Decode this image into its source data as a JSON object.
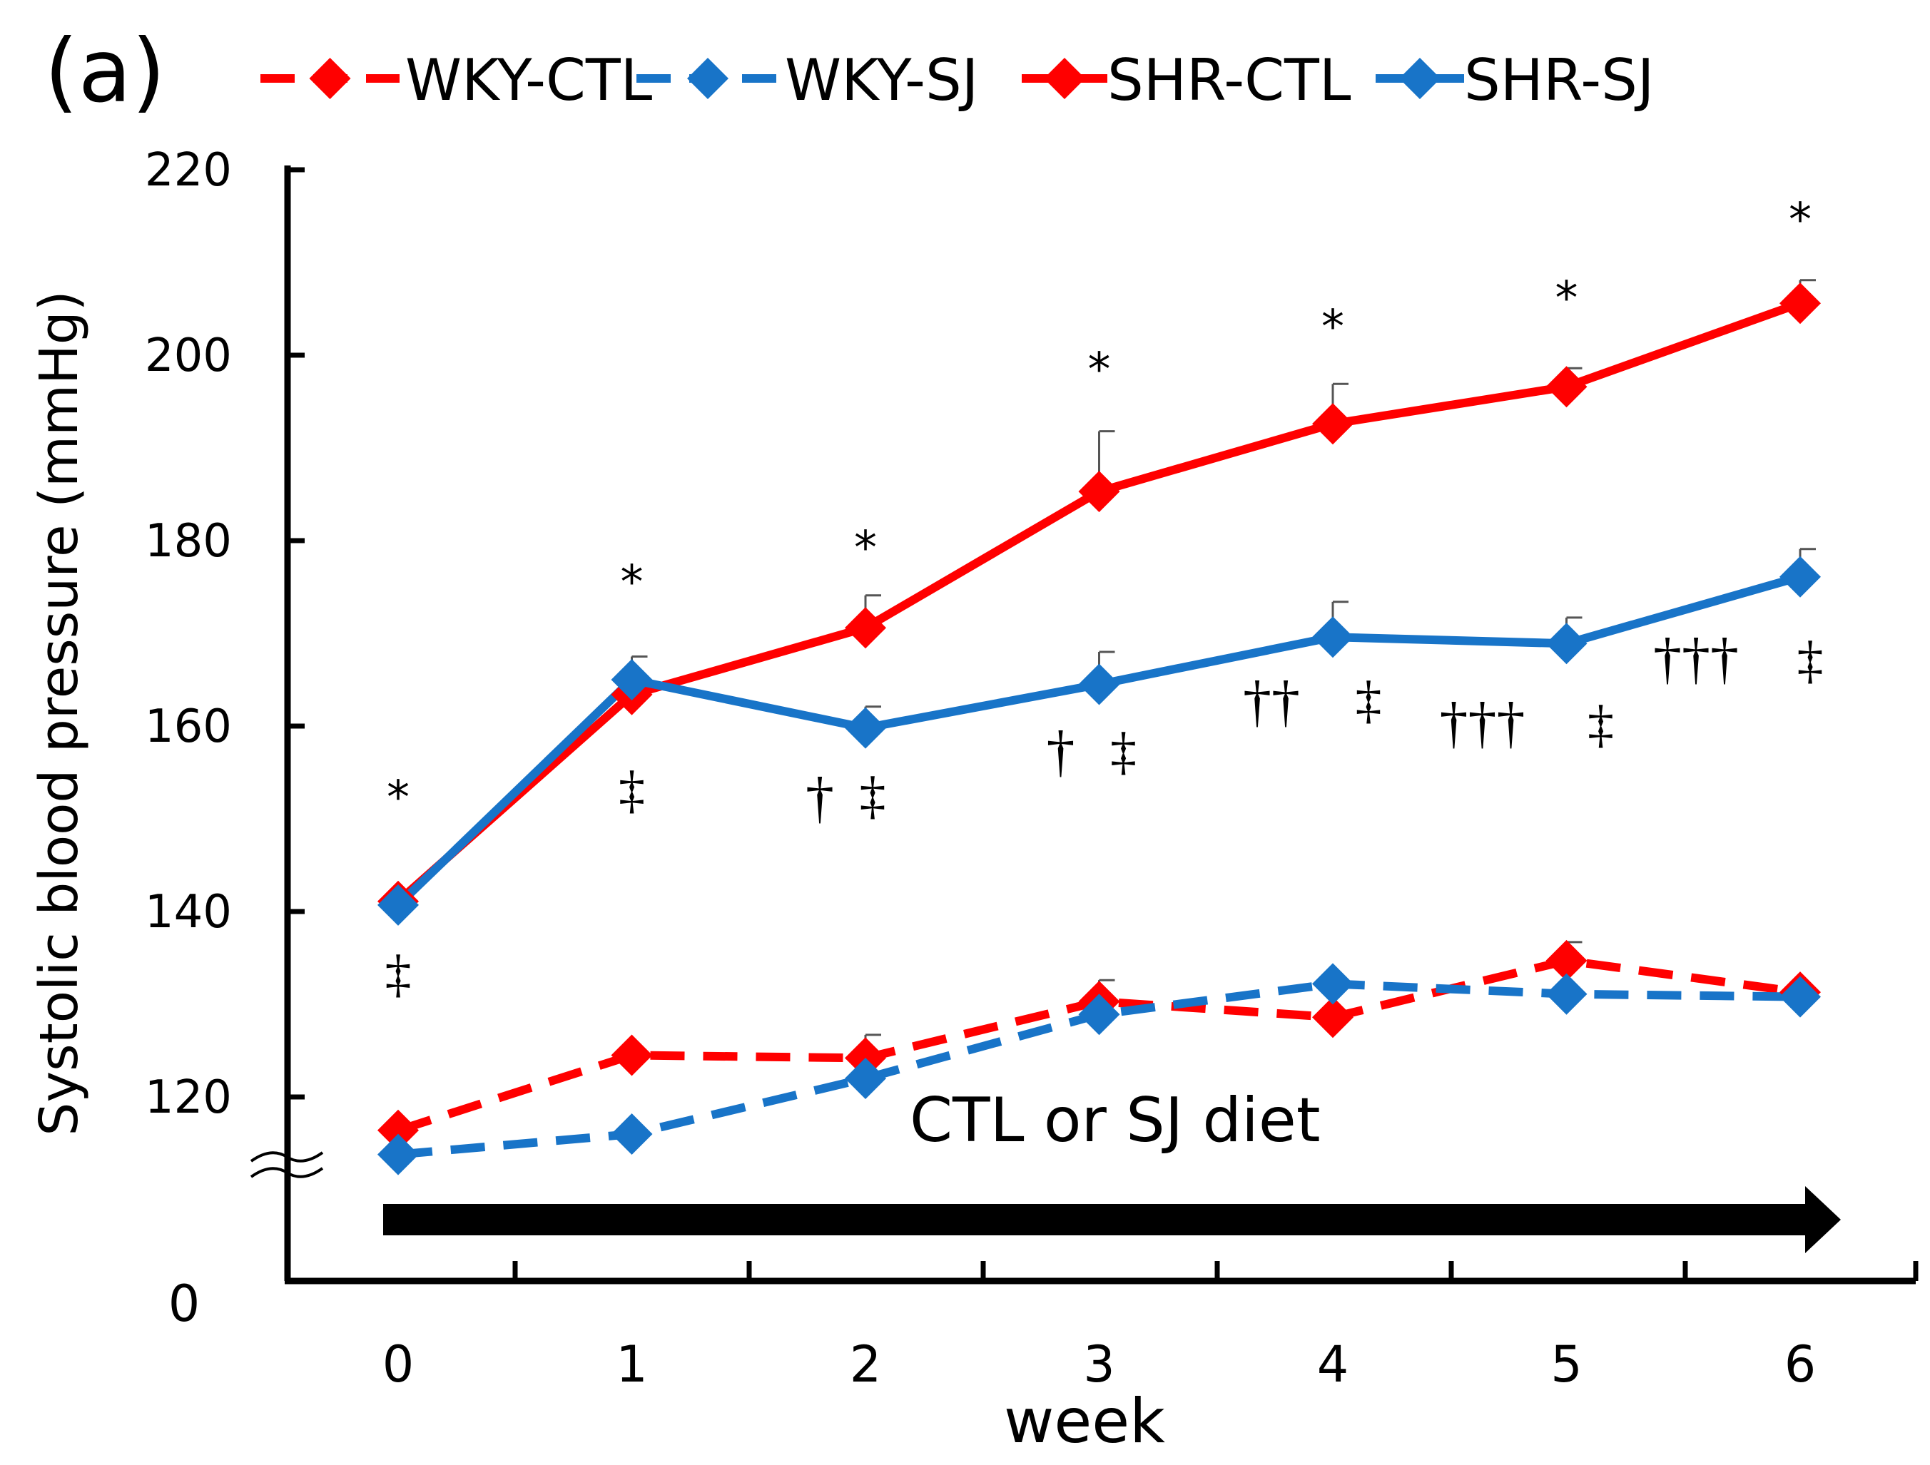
{
  "chart_data": {
    "type": "line",
    "panel_label": "(a)",
    "ylabel": "Systolic blood pressure (mmHg)",
    "xlabel": "week",
    "x": [
      0,
      1,
      2,
      3,
      4,
      5,
      6
    ],
    "yticks": [
      120,
      140,
      160,
      180,
      200,
      220
    ],
    "ylim": [
      110,
      220
    ],
    "y_zero_label": "0",
    "axis_break": true,
    "grid": false,
    "legend_position": "top",
    "annotation": "CTL or SJ diet",
    "series": [
      {
        "name": "WKY-CTL",
        "color": "#ff0000",
        "dash": true,
        "values": [
          116.4,
          124.5,
          124.2,
          130.3,
          128.6,
          134.7,
          131.3
        ],
        "errors": [
          0,
          0,
          2.5,
          2.3,
          0,
          2.0,
          0
        ]
      },
      {
        "name": "WKY-SJ",
        "color": "#1874c8",
        "dash": true,
        "values": [
          113.8,
          116.0,
          122.0,
          128.9,
          132.2,
          131.1,
          130.8
        ],
        "errors": [
          0,
          0,
          0,
          0,
          0,
          0,
          0
        ]
      },
      {
        "name": "SHR-CTL",
        "color": "#ff0000",
        "dash": false,
        "values": [
          141.1,
          163.4,
          170.6,
          185.3,
          192.6,
          196.6,
          205.6
        ],
        "errors": [
          0,
          0,
          3.5,
          6.5,
          4.3,
          2.0,
          2.5
        ]
      },
      {
        "name": "SHR-SJ",
        "color": "#1874c8",
        "dash": false,
        "values": [
          140.7,
          165.0,
          159.8,
          164.5,
          169.6,
          168.9,
          176.1
        ],
        "errors": [
          0,
          2.5,
          2.3,
          3.5,
          3.8,
          2.8,
          3.0
        ]
      }
    ],
    "significance": {
      "star": [
        "*",
        "*",
        "*",
        "*",
        "*",
        "*",
        "*"
      ],
      "dagger": [
        "",
        "",
        "†",
        "†",
        "††",
        "†††",
        "†††"
      ],
      "ddagger": [
        "‡",
        "‡",
        "‡",
        "‡",
        "‡",
        "‡",
        "‡"
      ]
    }
  }
}
